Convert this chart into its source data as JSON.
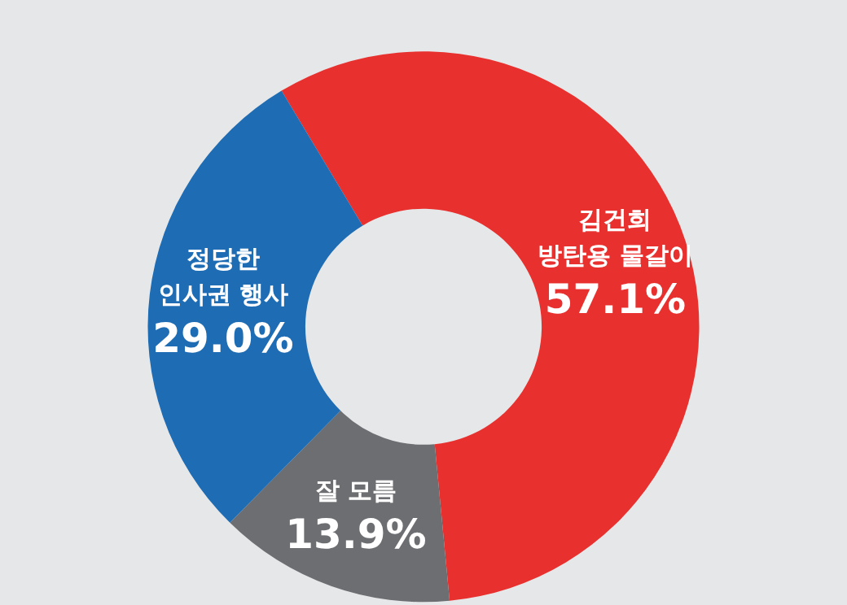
{
  "chart_data": {
    "type": "donut",
    "categories": [
      "김건희\n방탄용 물갈이",
      "잘 모름",
      "정당한\n인사권 행사"
    ],
    "values": [
      57.1,
      13.9,
      29.0
    ],
    "value_labels": [
      "57.1%",
      "13.9%",
      "29.0%"
    ],
    "colors": [
      "#e8312f",
      "#6d6e71",
      "#1e6cb3"
    ],
    "legend": false
  }
}
